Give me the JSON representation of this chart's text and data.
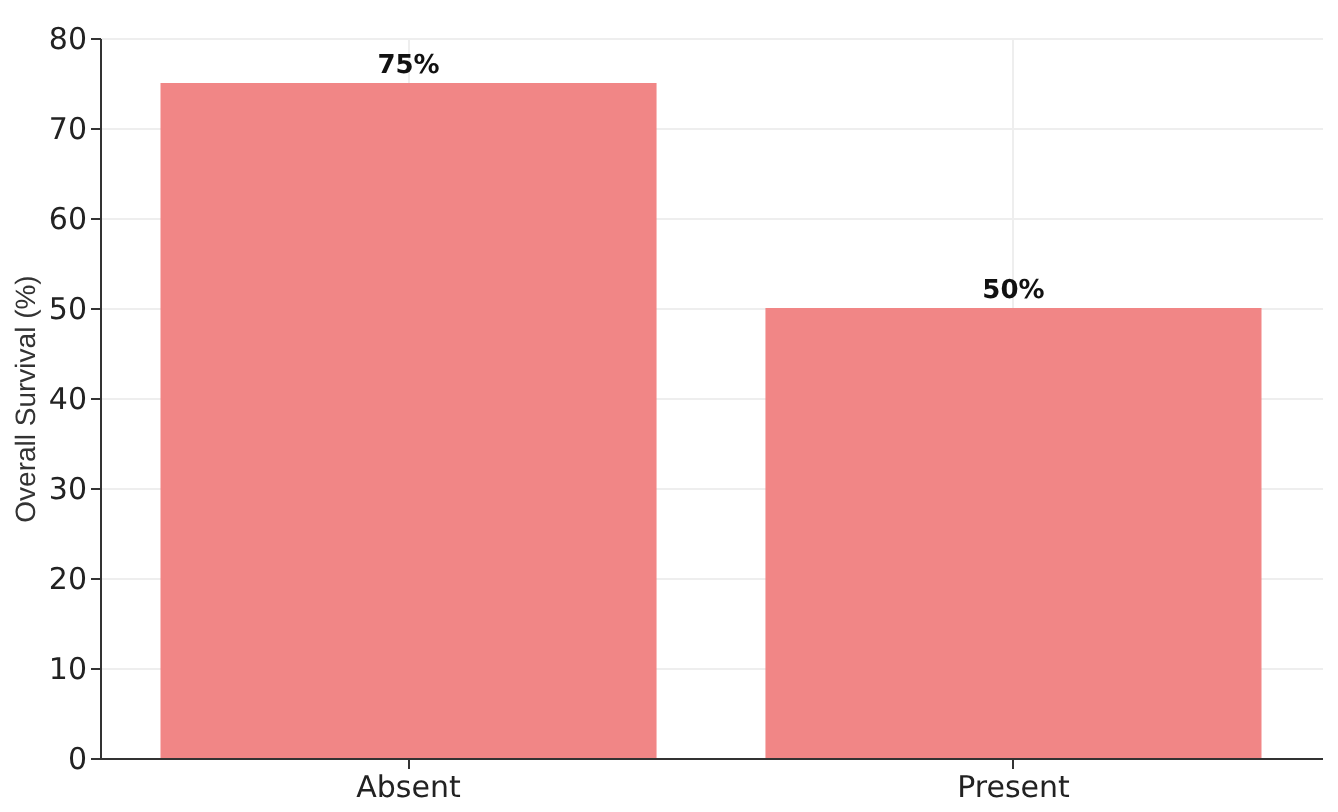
{
  "chart_data": {
    "type": "bar",
    "ylabel": "Overall Survival (%)",
    "categories": [
      "Absent",
      "Present"
    ],
    "values": [
      75,
      50
    ],
    "color": "#f08080",
    "value_labels": [
      "75%",
      "50%"
    ],
    "ylim": [
      0,
      80
    ],
    "yticks": [
      0,
      10,
      20,
      30,
      40,
      50,
      60,
      70,
      80
    ],
    "grid": true
  }
}
